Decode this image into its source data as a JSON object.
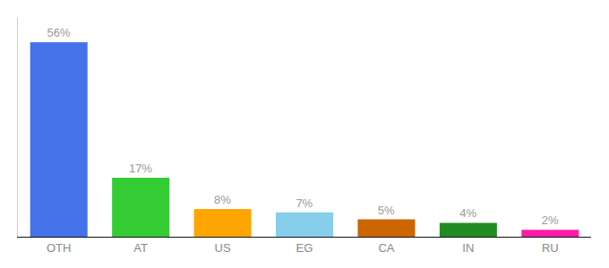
{
  "chart_data": {
    "type": "bar",
    "categories": [
      "OTH",
      "AT",
      "US",
      "EG",
      "CA",
      "IN",
      "RU"
    ],
    "values": [
      56,
      17,
      8,
      7,
      5,
      4,
      2
    ],
    "value_labels": [
      "56%",
      "17%",
      "8%",
      "7%",
      "5%",
      "4%",
      "2%"
    ],
    "colors": [
      "#4472e8",
      "#33cc33",
      "#ffa500",
      "#87ceeb",
      "#cc6600",
      "#228B22",
      "#ff1aaa"
    ],
    "ylim": [
      0,
      63
    ],
    "data_labels": true,
    "tick_labels": "x",
    "grid": false
  }
}
